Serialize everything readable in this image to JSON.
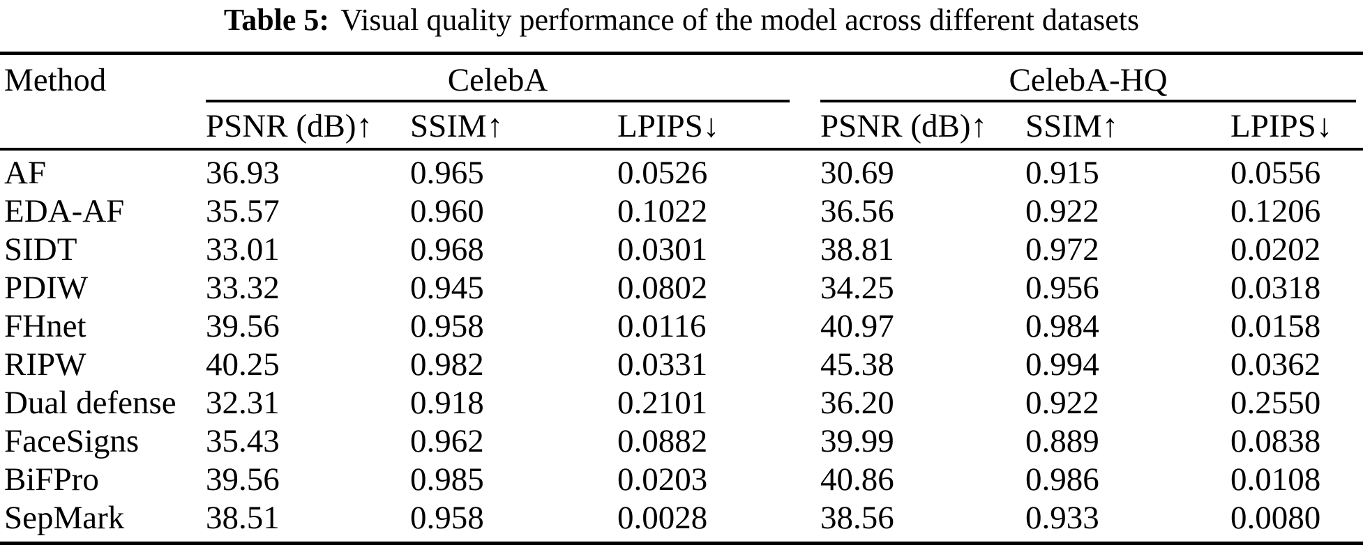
{
  "caption": {
    "label": "Table 5:",
    "text": "Visual quality performance of the model across different datasets"
  },
  "table": {
    "method_header": "Method",
    "group_headers": [
      {
        "label": "CelebA"
      },
      {
        "label": "CelebA-HQ"
      }
    ],
    "metric_headers": [
      "PSNR (dB)↑",
      "SSIM↑",
      "LPIPS↓",
      "PSNR (dB)↑",
      "SSIM↑",
      "LPIPS↓"
    ],
    "rows": [
      {
        "method": "AF",
        "values": [
          "36.93",
          "0.965",
          "0.0526",
          "30.69",
          "0.915",
          "0.0556"
        ]
      },
      {
        "method": "EDA-AF",
        "values": [
          "35.57",
          "0.960",
          "0.1022",
          "36.56",
          "0.922",
          "0.1206"
        ]
      },
      {
        "method": "SIDT",
        "values": [
          "33.01",
          "0.968",
          "0.0301",
          "38.81",
          "0.972",
          "0.0202"
        ]
      },
      {
        "method": "PDIW",
        "values": [
          "33.32",
          "0.945",
          "0.0802",
          "34.25",
          "0.956",
          "0.0318"
        ]
      },
      {
        "method": "FHnet",
        "values": [
          "39.56",
          "0.958",
          "0.0116",
          "40.97",
          "0.984",
          "0.0158"
        ]
      },
      {
        "method": "RIPW",
        "values": [
          "40.25",
          "0.982",
          "0.0331",
          "45.38",
          "0.994",
          "0.0362"
        ]
      },
      {
        "method": "Dual defense",
        "values": [
          "32.31",
          "0.918",
          "0.2101",
          "36.20",
          "0.922",
          "0.2550"
        ]
      },
      {
        "method": "FaceSigns",
        "values": [
          "35.43",
          "0.962",
          "0.0882",
          "39.99",
          "0.889",
          "0.0838"
        ]
      },
      {
        "method": "BiFPro",
        "values": [
          "39.56",
          "0.985",
          "0.0203",
          "40.86",
          "0.986",
          "0.0108"
        ]
      },
      {
        "method": "SepMark",
        "values": [
          "38.51",
          "0.958",
          "0.0028",
          "38.56",
          "0.933",
          "0.0080"
        ]
      }
    ]
  }
}
